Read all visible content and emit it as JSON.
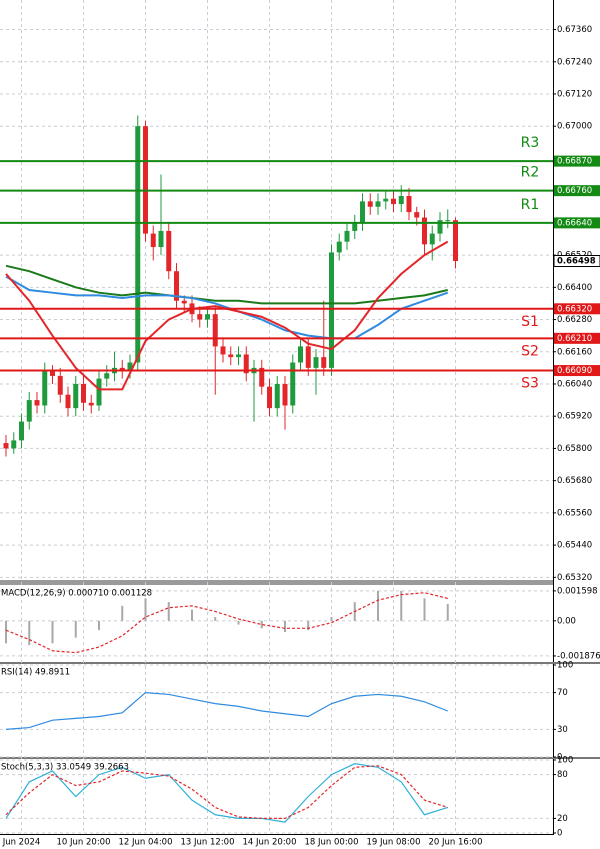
{
  "chart_data": [
    {
      "type": "candlestick",
      "open": [
        0.6582,
        0.658,
        0.6583,
        0.659,
        0.6598,
        0.6596,
        0.6609,
        0.6607,
        0.66,
        0.6595,
        0.6604,
        0.6597,
        0.6596,
        0.6606,
        0.6608,
        0.661,
        0.6609,
        0.6612,
        0.67,
        0.666,
        0.6655,
        0.6661,
        0.6646,
        0.6635,
        0.6634,
        0.663,
        0.6628,
        0.663,
        0.6618,
        0.6615,
        0.6614,
        0.6615,
        0.6608,
        0.661,
        0.6603,
        0.6595,
        0.6604,
        0.6596,
        0.6612,
        0.6618,
        0.661,
        0.6614,
        0.661,
        0.6653,
        0.6657,
        0.6661,
        0.6664,
        0.6672,
        0.667,
        0.6672,
        0.6673,
        0.6671,
        0.6674,
        0.6668,
        0.6666,
        0.6656,
        0.666,
        0.6665,
        0.6665
      ],
      "high": [
        0.6585,
        0.6586,
        0.6593,
        0.6601,
        0.6601,
        0.6612,
        0.6611,
        0.661,
        0.6603,
        0.6607,
        0.6607,
        0.66,
        0.6609,
        0.6611,
        0.6616,
        0.6613,
        0.6615,
        0.6704,
        0.6702,
        0.6663,
        0.6682,
        0.6664,
        0.6649,
        0.6637,
        0.6637,
        0.6633,
        0.6633,
        0.6633,
        0.6621,
        0.6618,
        0.6618,
        0.6618,
        0.6613,
        0.6613,
        0.6606,
        0.6607,
        0.6607,
        0.6615,
        0.6621,
        0.6621,
        0.6617,
        0.6635,
        0.6656,
        0.666,
        0.6664,
        0.6667,
        0.6675,
        0.6675,
        0.6675,
        0.6676,
        0.6676,
        0.6678,
        0.6677,
        0.667,
        0.6669,
        0.6663,
        0.6668,
        0.6669,
        0.6666
      ],
      "low": [
        0.6577,
        0.6578,
        0.658,
        0.6587,
        0.6593,
        0.6593,
        0.6604,
        0.6597,
        0.6592,
        0.6592,
        0.6594,
        0.6593,
        0.6594,
        0.6603,
        0.6605,
        0.6606,
        0.6606,
        0.6609,
        0.6657,
        0.665,
        0.6652,
        0.6643,
        0.6632,
        0.6631,
        0.6627,
        0.6625,
        0.6625,
        0.66,
        0.6612,
        0.6611,
        0.6611,
        0.6605,
        0.659,
        0.66,
        0.6592,
        0.6592,
        0.6587,
        0.6593,
        0.6609,
        0.6607,
        0.66,
        0.6607,
        0.6607,
        0.665,
        0.6654,
        0.6658,
        0.6661,
        0.6667,
        0.6667,
        0.6669,
        0.6668,
        0.6668,
        0.6665,
        0.6663,
        0.6652,
        0.665,
        0.6657,
        0.6662,
        0.6647
      ],
      "close": [
        0.658,
        0.6583,
        0.659,
        0.6598,
        0.6596,
        0.6609,
        0.6607,
        0.66,
        0.6595,
        0.6604,
        0.6597,
        0.6596,
        0.6606,
        0.6608,
        0.661,
        0.6609,
        0.6612,
        0.67,
        0.666,
        0.6655,
        0.6661,
        0.6646,
        0.6635,
        0.6634,
        0.663,
        0.6628,
        0.663,
        0.6618,
        0.6615,
        0.6614,
        0.6615,
        0.6608,
        0.661,
        0.6603,
        0.6595,
        0.6604,
        0.6596,
        0.6612,
        0.6618,
        0.661,
        0.6614,
        0.661,
        0.6653,
        0.6657,
        0.6661,
        0.6664,
        0.6672,
        0.667,
        0.6672,
        0.6673,
        0.6671,
        0.6674,
        0.6668,
        0.6666,
        0.6656,
        0.666,
        0.6665,
        0.6665,
        0.66498
      ],
      "up_color": "#1f9a3c",
      "down_color": "#e3262a",
      "ylim": [
        0.6531,
        0.6747
      ],
      "yticks": [
        {
          "value": 0.6736,
          "label": "0.67360"
        },
        {
          "value": 0.6724,
          "label": "0.67240"
        },
        {
          "value": 0.6712,
          "label": "0.67120"
        },
        {
          "value": 0.67,
          "label": "0.67000"
        },
        {
          "value": 0.6652,
          "label": "0.66520"
        },
        {
          "value": 0.664,
          "label": "0.66400"
        },
        {
          "value": 0.6628,
          "label": "0.66280"
        },
        {
          "value": 0.6616,
          "label": "0.66160"
        },
        {
          "value": 0.6604,
          "label": "0.66040"
        },
        {
          "value": 0.6592,
          "label": "0.65920"
        },
        {
          "value": 0.658,
          "label": "0.65800"
        },
        {
          "value": 0.6568,
          "label": "0.65680"
        },
        {
          "value": 0.6556,
          "label": "0.65560"
        },
        {
          "value": 0.6544,
          "label": "0.65440"
        },
        {
          "value": 0.6532,
          "label": "0.65320"
        }
      ],
      "grid": true,
      "levels": [
        {
          "name": "R3",
          "value": 0.6687,
          "label": "0.66870",
          "color": "#138a13"
        },
        {
          "name": "R2",
          "value": 0.6676,
          "label": "0.66760",
          "color": "#138a13"
        },
        {
          "name": "R1",
          "value": 0.6664,
          "label": "0.66640",
          "color": "#138a13"
        },
        {
          "name": "S1",
          "value": 0.6632,
          "label": "0.66320",
          "color": "#e01818"
        },
        {
          "name": "S2",
          "value": 0.6621,
          "label": "0.66210",
          "color": "#e01818"
        },
        {
          "name": "S3",
          "value": 0.6609,
          "label": "0.66090",
          "color": "#e01818"
        }
      ],
      "last_price": {
        "value": 0.66498,
        "label": "0.66498"
      },
      "series": [
        {
          "color": "#1a7a1a",
          "x": [
            0,
            3,
            6,
            9,
            12,
            15,
            18,
            21,
            24,
            27,
            30,
            33,
            36,
            39,
            42,
            45,
            48,
            51,
            54,
            57
          ],
          "values": [
            0.6648,
            0.6646,
            0.6643,
            0.664,
            0.6638,
            0.6637,
            0.6638,
            0.6637,
            0.6636,
            0.6635,
            0.6635,
            0.6634,
            0.6634,
            0.6634,
            0.6634,
            0.6634,
            0.6635,
            0.6636,
            0.6637,
            0.6639
          ]
        },
        {
          "color": "#2f8be0",
          "x": [
            0,
            3,
            6,
            9,
            12,
            15,
            18,
            21,
            24,
            27,
            30,
            33,
            36,
            39,
            42,
            45,
            48,
            51,
            54,
            57
          ],
          "values": [
            0.6644,
            0.6639,
            0.6638,
            0.6637,
            0.6637,
            0.6636,
            0.6637,
            0.6637,
            0.6636,
            0.6634,
            0.6631,
            0.6628,
            0.6624,
            0.6622,
            0.6621,
            0.6621,
            0.6626,
            0.6632,
            0.6635,
            0.6638
          ]
        },
        {
          "color": "#e3262a",
          "x": [
            0,
            3,
            6,
            9,
            12,
            15,
            18,
            21,
            24,
            27,
            30,
            33,
            36,
            39,
            42,
            45,
            48,
            51,
            54,
            57
          ],
          "values": [
            0.6645,
            0.6635,
            0.6622,
            0.661,
            0.6602,
            0.6602,
            0.662,
            0.6628,
            0.6632,
            0.6633,
            0.6631,
            0.6629,
            0.6625,
            0.6619,
            0.6617,
            0.6624,
            0.6636,
            0.6645,
            0.6652,
            0.6657
          ]
        }
      ]
    },
    {
      "type": "macd",
      "title": "MACD(12,26,9) 0.000710 0.001128",
      "ylim": [
        -0.0022,
        0.00186
      ],
      "yticks": [
        0.001598,
        {
          "value": 0,
          "label": "0.00"
        },
        -0.001876
      ],
      "histogram": {
        "color": "#a8a8a8",
        "x": [
          0,
          3,
          6,
          9,
          12,
          15,
          18,
          21,
          24,
          27,
          30,
          33,
          36,
          39,
          42,
          45,
          48,
          51,
          54,
          57
        ],
        "values": [
          -0.0012,
          -0.0013,
          -0.0012,
          -0.0009,
          -0.0005,
          0.0008,
          0.0012,
          0.001,
          0.0006,
          0.0002,
          -0.0002,
          -0.0004,
          -0.0006,
          -0.0005,
          0.0002,
          0.001,
          0.0016,
          0.0016,
          0.0012,
          0.0009
        ]
      },
      "series": [
        {
          "color": "#e3262a",
          "style": "dashed",
          "x": [
            0,
            3,
            6,
            9,
            12,
            15,
            18,
            21,
            24,
            27,
            30,
            33,
            36,
            39,
            42,
            45,
            48,
            51,
            54,
            57
          ],
          "values": [
            -0.0005,
            -0.001,
            -0.0016,
            -0.0017,
            -0.0014,
            -0.0008,
            0.0002,
            0.0007,
            0.0008,
            0.0005,
            0.0001,
            -0.0002,
            -0.0004,
            -0.0004,
            -0.0001,
            0.0005,
            0.0011,
            0.0014,
            0.0015,
            0.0012
          ]
        }
      ]
    },
    {
      "type": "line",
      "title": "RSI(14) 49.8911",
      "ylim": [
        0,
        100
      ],
      "yticks": [
        0,
        30,
        70,
        100
      ],
      "series": [
        {
          "color": "#2f8be0",
          "x": [
            0,
            3,
            6,
            9,
            12,
            15,
            18,
            21,
            24,
            27,
            30,
            33,
            36,
            39,
            42,
            45,
            48,
            51,
            54,
            57
          ],
          "values": [
            30,
            32,
            40,
            42,
            44,
            48,
            70,
            68,
            63,
            58,
            55,
            50,
            47,
            44,
            58,
            66,
            68,
            66,
            60,
            50
          ]
        }
      ]
    },
    {
      "type": "line",
      "title": "Stoch(5,3,3) 33.0549 39.2663",
      "ylim": [
        0,
        100
      ],
      "yticks": [
        0,
        20,
        80,
        100
      ],
      "xticks": [
        {
          "value": 2,
          "label": "Jun 2024"
        },
        {
          "value": 10,
          "label": "10 Jun 20:00"
        },
        {
          "value": 18,
          "label": "12 Jun 04:00"
        },
        {
          "value": 26,
          "label": "13 Jun 12:00"
        },
        {
          "value": 34,
          "label": "14 Jun 20:00"
        },
        {
          "value": 42,
          "label": "18 Jun 00:00"
        },
        {
          "value": 50,
          "label": "19 Jun 08:00"
        },
        {
          "value": 58,
          "label": "20 Jun 16:00"
        }
      ],
      "series": [
        {
          "color": "#2fb0d8",
          "x": [
            0,
            3,
            6,
            9,
            12,
            15,
            18,
            21,
            24,
            27,
            30,
            33,
            36,
            39,
            42,
            45,
            48,
            51,
            54,
            57
          ],
          "values": [
            20,
            70,
            85,
            50,
            80,
            90,
            75,
            80,
            45,
            25,
            20,
            20,
            15,
            50,
            80,
            95,
            90,
            70,
            25,
            35
          ]
        },
        {
          "color": "#e3262a",
          "style": "dashed",
          "x": [
            0,
            3,
            6,
            9,
            12,
            15,
            18,
            21,
            24,
            27,
            30,
            33,
            36,
            39,
            42,
            45,
            48,
            51,
            54,
            57
          ],
          "values": [
            25,
            55,
            80,
            65,
            70,
            85,
            82,
            78,
            60,
            35,
            22,
            20,
            20,
            35,
            65,
            90,
            92,
            80,
            45,
            35
          ]
        }
      ]
    }
  ]
}
